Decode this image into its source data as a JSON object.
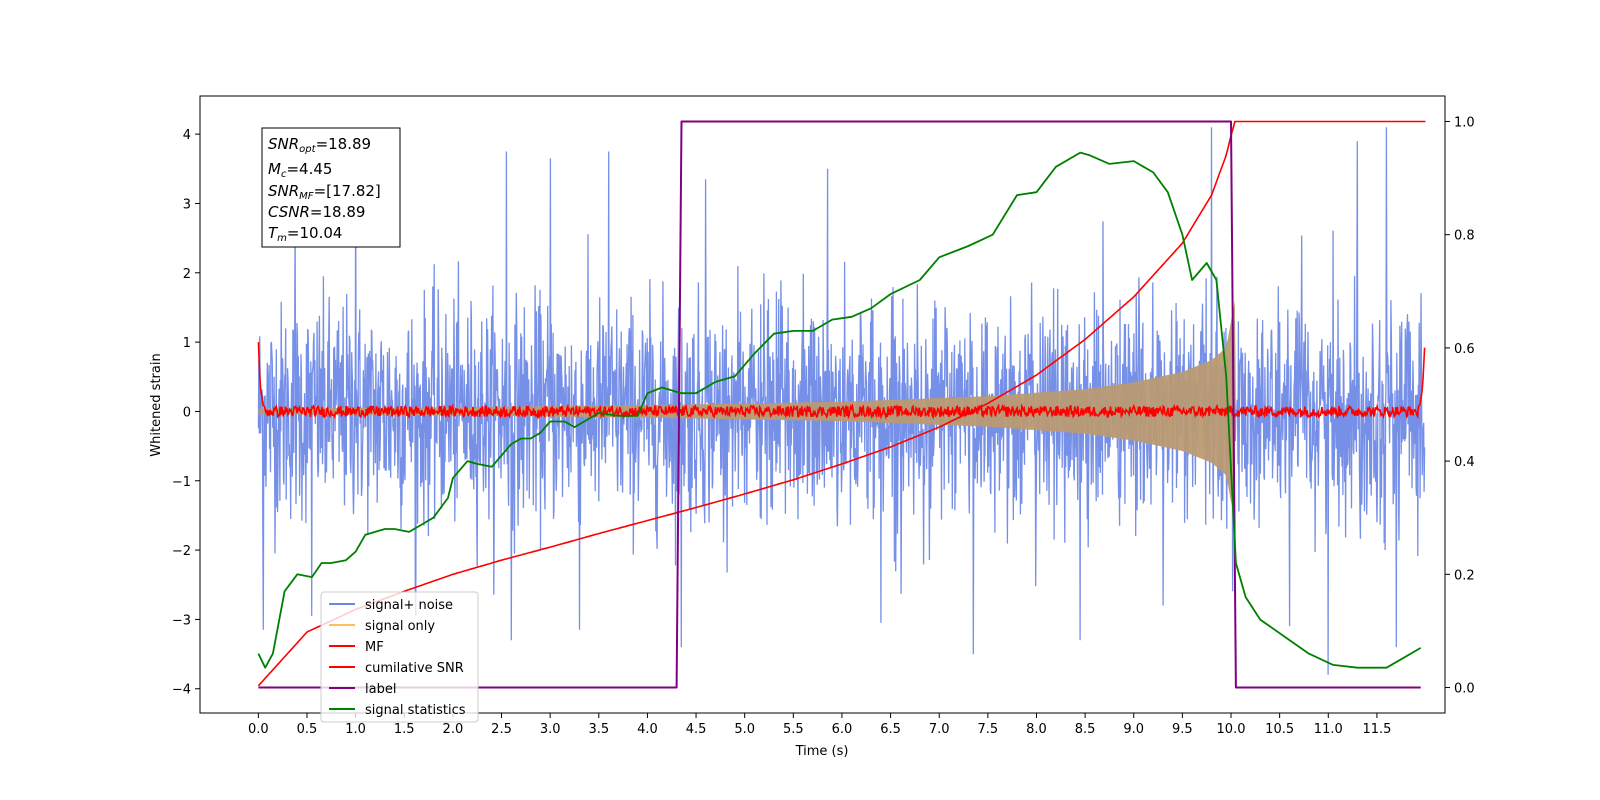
{
  "chart_data": {
    "type": "line",
    "xlabel": "Time (s)",
    "ylabel": "Whitened strain",
    "xlim": [
      -0.6,
      12.2
    ],
    "ylim": [
      -4.35,
      4.55
    ],
    "y2lim": [
      -0.045,
      1.045
    ],
    "x_ticks": [
      0.0,
      0.5,
      1.0,
      1.5,
      2.0,
      2.5,
      3.0,
      3.5,
      4.0,
      4.5,
      5.0,
      5.5,
      6.0,
      6.5,
      7.0,
      7.5,
      8.0,
      8.5,
      9.0,
      9.5,
      10.0,
      10.5,
      11.0,
      11.5
    ],
    "x_tick_labels": [
      "0.0",
      "0.5",
      "1.0",
      "1.5",
      "2.0",
      "2.5",
      "3.0",
      "3.5",
      "4.0",
      "4.5",
      "5.0",
      "5.5",
      "6.0",
      "6.5",
      "7.0",
      "7.5",
      "8.0",
      "8.5",
      "9.0",
      "9.5",
      "10.0",
      "10.5",
      "11.0",
      "11.5"
    ],
    "y_ticks": [
      -4,
      -3,
      -2,
      -1,
      0,
      1,
      2,
      3,
      4
    ],
    "y_tick_labels": [
      "−4",
      "−3",
      "−2",
      "−1",
      "0",
      "1",
      "2",
      "3",
      "4"
    ],
    "y2_ticks": [
      0.0,
      0.2,
      0.4,
      0.6,
      0.8,
      1.0
    ],
    "y2_tick_labels": [
      "0.0",
      "0.2",
      "0.4",
      "0.6",
      "0.8",
      "1.0"
    ],
    "grid": false,
    "legend_position": "lower-left",
    "colors": {
      "noise": "#6a87e6",
      "signal": "#ffbf60",
      "signal_overlap": "#b99a73",
      "mf": "#ff0000",
      "csnr": "#ff0000",
      "label": "#800080",
      "stats": "#008000"
    },
    "annotation": {
      "snr_opt": {
        "main": "SNR",
        "sub": "opt",
        "value": "=18.89"
      },
      "mc": {
        "main": "M",
        "sub": "c",
        "value": "=4.45"
      },
      "snr_mf": {
        "main": "SNR",
        "sub": "MF",
        "value": "=[17.82]"
      },
      "csnr": {
        "main": "CSNR",
        "sub": "",
        "value": "=18.89"
      },
      "tm": {
        "main": "T",
        "sub": "m",
        "value": "=10.04"
      }
    },
    "series": [
      {
        "name": "signal+ noise",
        "axis": "left",
        "style": "noise",
        "x_range": [
          0.0,
          11.99
        ],
        "envelope_typical": 2.2,
        "spike_peaks": [
          [
            0.05,
            -3.15
          ],
          [
            0.38,
            2.85
          ],
          [
            0.55,
            -2.95
          ],
          [
            1.0,
            3.6
          ],
          [
            1.62,
            -2.95
          ],
          [
            2.55,
            3.75
          ],
          [
            2.6,
            -3.3
          ],
          [
            3.0,
            3.65
          ],
          [
            3.3,
            -3.15
          ],
          [
            3.6,
            3.75
          ],
          [
            4.35,
            -3.4
          ],
          [
            4.6,
            3.35
          ],
          [
            5.85,
            3.5
          ],
          [
            6.4,
            -3.05
          ],
          [
            7.35,
            -3.5
          ],
          [
            8.45,
            -3.3
          ],
          [
            9.3,
            -2.8
          ],
          [
            9.8,
            4.1
          ],
          [
            10.6,
            -3.1
          ],
          [
            11.0,
            -3.8
          ],
          [
            11.3,
            3.9
          ],
          [
            11.6,
            4.1
          ],
          [
            11.7,
            -3.4
          ]
        ]
      },
      {
        "name": "signal only",
        "axis": "left",
        "style": "chirp",
        "envelope": [
          [
            0.0,
            0.04
          ],
          [
            2.0,
            0.06
          ],
          [
            4.0,
            0.09
          ],
          [
            6.0,
            0.14
          ],
          [
            7.5,
            0.22
          ],
          [
            8.5,
            0.32
          ],
          [
            9.0,
            0.42
          ],
          [
            9.5,
            0.57
          ],
          [
            9.8,
            0.74
          ],
          [
            9.95,
            0.92
          ],
          [
            10.04,
            1.6
          ],
          [
            10.05,
            0.0
          ]
        ]
      },
      {
        "name": "MF",
        "axis": "left",
        "style": "mf",
        "x_range": [
          0.0,
          11.99
        ],
        "noise_amplitude": 0.08,
        "edges": [
          [
            0.0,
            1.0
          ],
          [
            0.02,
            0.35
          ],
          [
            0.05,
            0.08
          ],
          [
            11.94,
            0.08
          ],
          [
            11.97,
            0.35
          ],
          [
            11.99,
            0.92
          ]
        ]
      },
      {
        "name": "cumilative SNR",
        "axis": "right",
        "x": [
          0.0,
          0.5,
          1.0,
          1.5,
          2.0,
          2.5,
          3.0,
          3.5,
          4.0,
          4.5,
          5.0,
          5.5,
          6.0,
          6.5,
          7.0,
          7.5,
          8.0,
          8.5,
          9.0,
          9.5,
          9.8,
          9.95,
          10.0,
          10.04,
          10.05,
          12.0
        ],
        "y": [
          0.003,
          0.098,
          0.138,
          0.17,
          0.2,
          0.225,
          0.248,
          0.272,
          0.295,
          0.318,
          0.342,
          0.367,
          0.395,
          0.425,
          0.46,
          0.502,
          0.552,
          0.615,
          0.69,
          0.785,
          0.87,
          0.94,
          0.975,
          1.0,
          1.0,
          1.0
        ]
      },
      {
        "name": "label",
        "axis": "right",
        "x": [
          0.0,
          4.3,
          4.35,
          10.0,
          10.05,
          11.95
        ],
        "y": [
          0.0,
          0.0,
          1.0,
          1.0,
          0.0,
          0.0
        ]
      },
      {
        "name": "signal statistics",
        "axis": "right",
        "x": [
          0.0,
          0.07,
          0.15,
          0.27,
          0.4,
          0.55,
          0.65,
          0.75,
          0.9,
          1.0,
          1.1,
          1.2,
          1.3,
          1.4,
          1.55,
          1.7,
          1.8,
          1.95,
          2.0,
          2.15,
          2.25,
          2.4,
          2.5,
          2.6,
          2.7,
          2.8,
          2.9,
          3.0,
          3.15,
          3.25,
          3.35,
          3.5,
          3.7,
          3.9,
          4.0,
          4.15,
          4.35,
          4.5,
          4.7,
          4.9,
          5.1,
          5.3,
          5.5,
          5.7,
          5.9,
          6.1,
          6.3,
          6.5,
          6.8,
          7.0,
          7.3,
          7.55,
          7.8,
          8.0,
          8.2,
          8.45,
          8.55,
          8.75,
          9.0,
          9.2,
          9.35,
          9.5,
          9.6,
          9.75,
          9.85,
          9.95,
          10.05,
          10.15,
          10.3,
          10.55,
          10.8,
          11.05,
          11.3,
          11.6,
          11.95
        ],
        "y": [
          0.06,
          0.035,
          0.06,
          0.17,
          0.2,
          0.195,
          0.22,
          0.22,
          0.225,
          0.24,
          0.27,
          0.275,
          0.28,
          0.28,
          0.275,
          0.29,
          0.3,
          0.335,
          0.37,
          0.4,
          0.395,
          0.39,
          0.41,
          0.43,
          0.44,
          0.44,
          0.45,
          0.47,
          0.47,
          0.46,
          0.47,
          0.485,
          0.48,
          0.48,
          0.52,
          0.53,
          0.52,
          0.52,
          0.54,
          0.55,
          0.59,
          0.625,
          0.63,
          0.63,
          0.65,
          0.655,
          0.67,
          0.695,
          0.72,
          0.76,
          0.78,
          0.8,
          0.87,
          0.875,
          0.92,
          0.945,
          0.94,
          0.925,
          0.93,
          0.91,
          0.875,
          0.8,
          0.72,
          0.75,
          0.72,
          0.55,
          0.22,
          0.16,
          0.12,
          0.09,
          0.06,
          0.04,
          0.035,
          0.035,
          0.07
        ]
      }
    ]
  }
}
